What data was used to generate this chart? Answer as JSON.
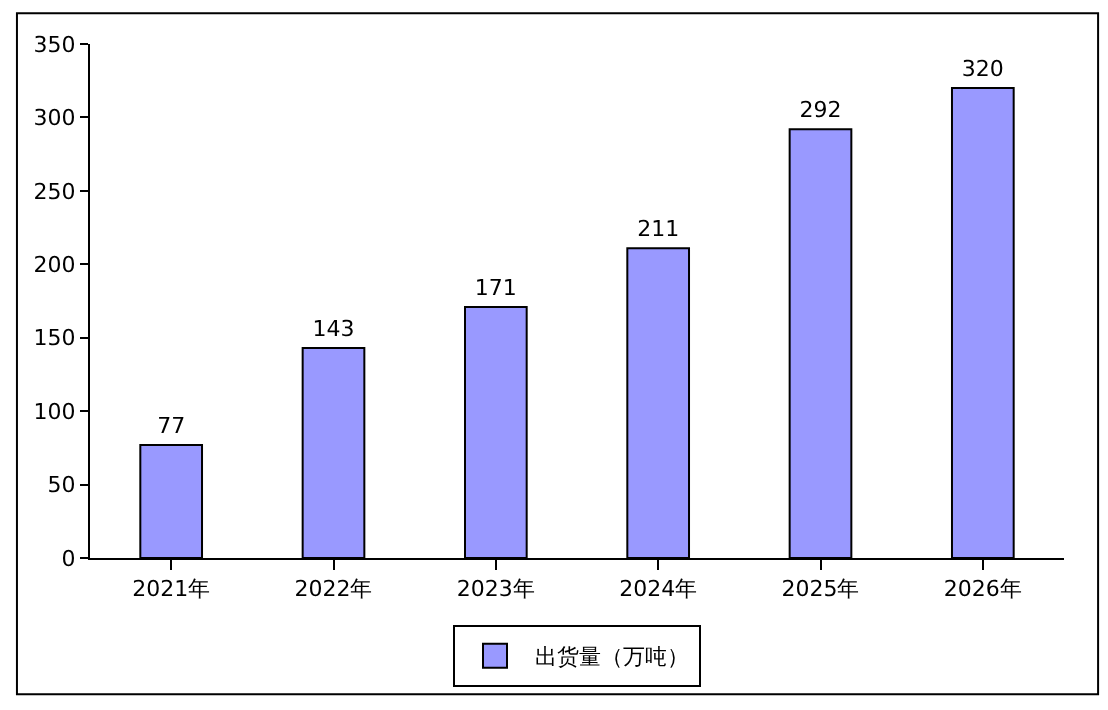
{
  "chart_data": {
    "type": "bar",
    "categories": [
      "2021年",
      "2022年",
      "2023年",
      "2024年",
      "2025年",
      "2026年"
    ],
    "series": [
      {
        "name": "出货量（万吨）",
        "color": "#9999ff",
        "values": [
          77,
          143,
          171,
          211,
          292,
          320
        ]
      }
    ],
    "ylim": [
      0,
      350
    ],
    "yticks": [
      0,
      50,
      100,
      150,
      200,
      250,
      300,
      350
    ],
    "legend": "bottom",
    "data_labels": true
  }
}
